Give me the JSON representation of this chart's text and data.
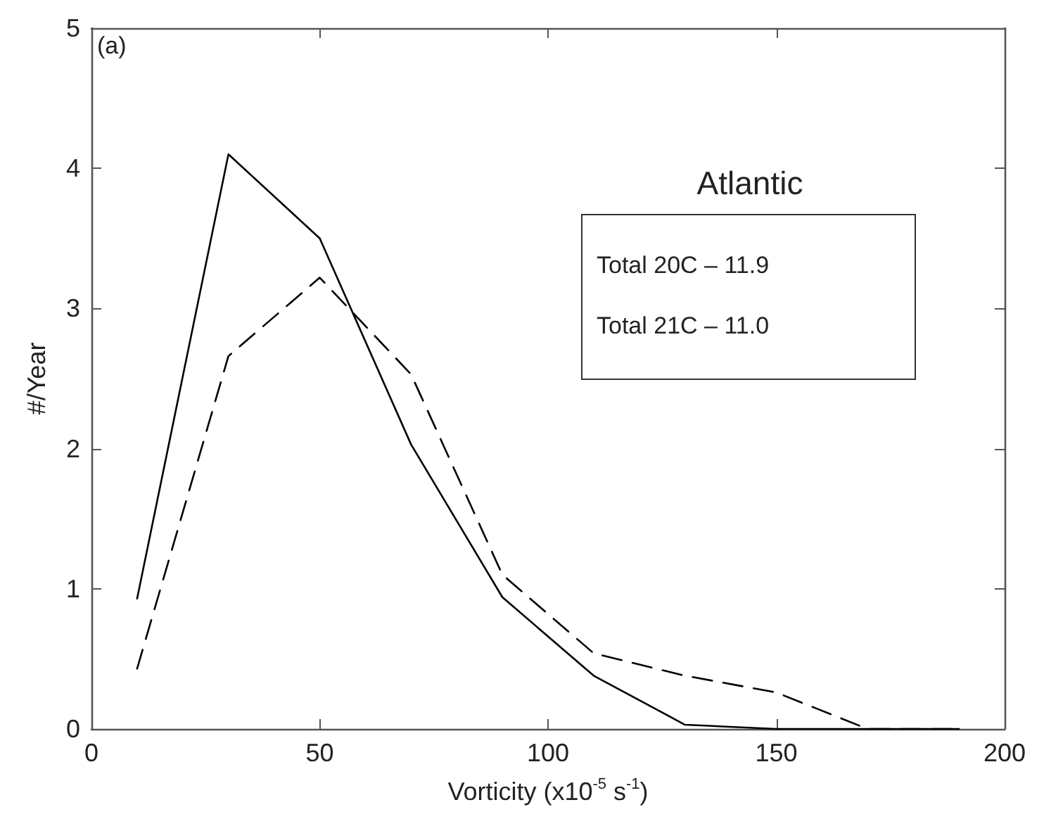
{
  "chart_data": {
    "type": "line",
    "title": "Atlantic",
    "xlabel": "Vorticity (x10$^{-5}$ s$^{-1}$)",
    "ylabel": "#/Year",
    "annotations": [
      "(a)",
      "Total 20C – 11.9",
      "Total 21C – 11.0"
    ],
    "x": [
      10,
      30,
      50,
      70,
      90,
      110,
      130,
      150,
      170,
      190
    ],
    "series": [
      {
        "color": "#000000",
        "line_style": "solid",
        "values": [
          0.93,
          4.1,
          3.5,
          2.03,
          0.94,
          0.38,
          0.03,
          0,
          0,
          0
        ]
      },
      {
        "color": "#000000",
        "line_style": "dashed",
        "values": [
          0.43,
          2.66,
          3.22,
          2.53,
          1.1,
          0.54,
          0.38,
          0.26,
          0,
          0
        ]
      }
    ],
    "xlim": [
      0,
      200
    ],
    "xticks": [
      0,
      50,
      100,
      150,
      200
    ],
    "ylim": [
      0,
      5
    ],
    "yticks": [
      0,
      1,
      2,
      3,
      4,
      5
    ],
    "grid": false,
    "marker": "none"
  }
}
